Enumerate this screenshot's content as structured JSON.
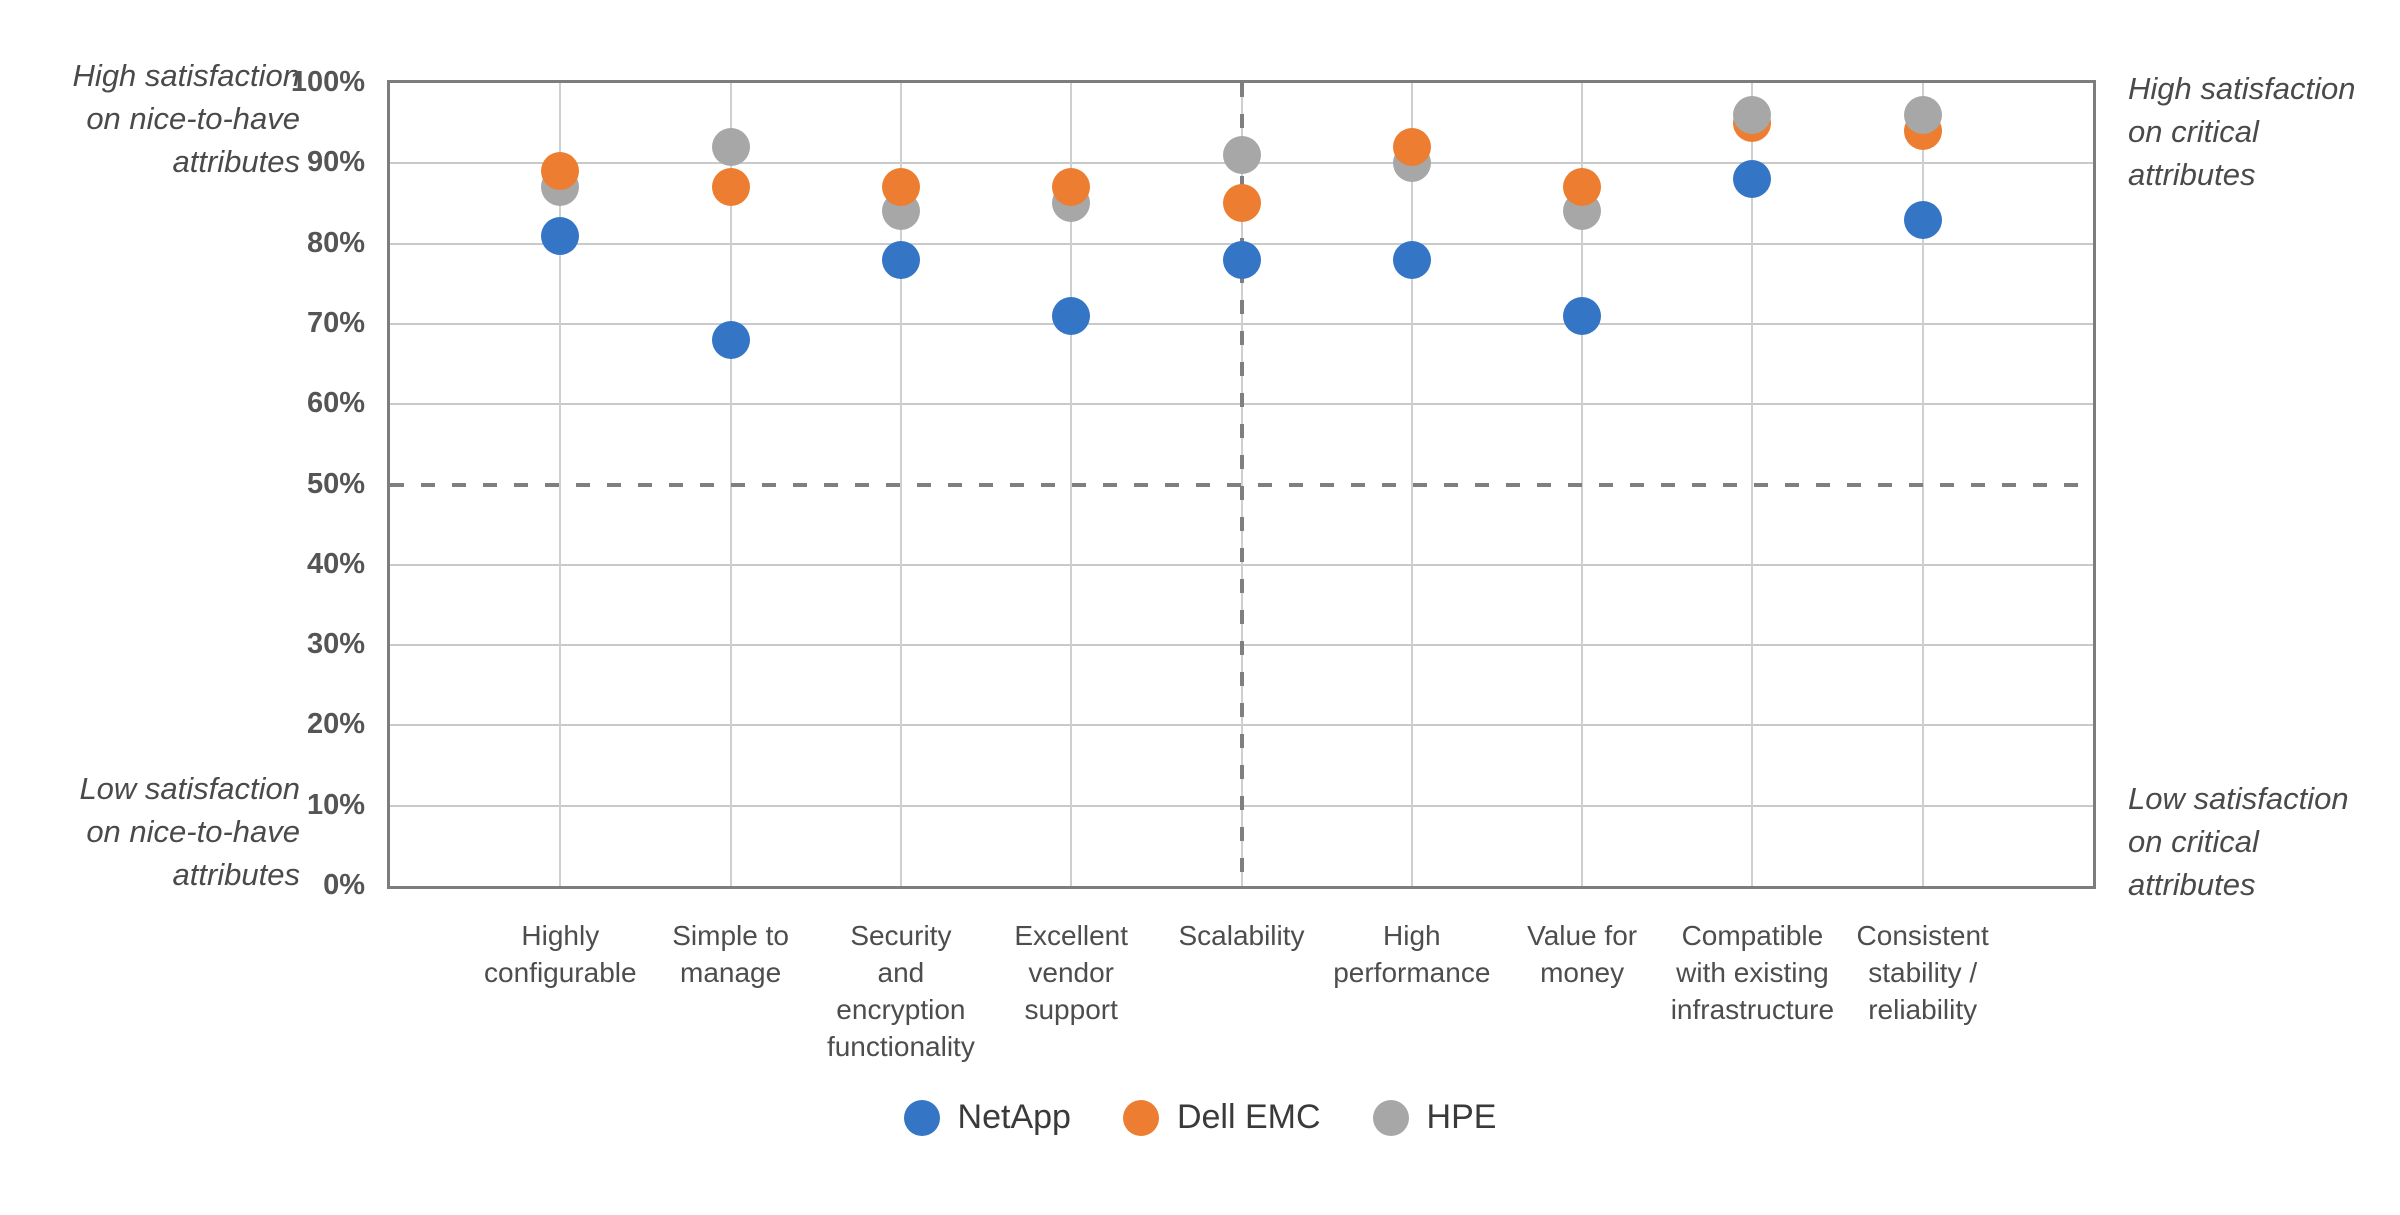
{
  "chart_data": {
    "type": "scatter",
    "title": "",
    "xlabel": "",
    "ylabel": "",
    "ylim": [
      0,
      100
    ],
    "y_tick_step": 10,
    "y_tick_suffix": "%",
    "grid": true,
    "legend_position": "bottom",
    "categories": [
      "Highly\nconfigurable",
      "Simple to\nmanage",
      "Security\nand\nencryption\nfunctionality",
      "Excellent\nvendor\nsupport",
      "Scalability",
      "High\nperformance",
      "Value for\nmoney",
      "Compatible\nwith existing\ninfrastructure",
      "Consistent\nstability /\nreliability"
    ],
    "series": [
      {
        "name": "NetApp",
        "color": "#3575c5",
        "values": [
          81,
          68,
          78,
          71,
          78,
          78,
          71,
          88,
          83
        ]
      },
      {
        "name": "Dell EMC",
        "color": "#ed7d31",
        "values": [
          89,
          87,
          87,
          87,
          85,
          92,
          87,
          95,
          94
        ]
      },
      {
        "name": "HPE",
        "color": "#a7a7a7",
        "values": [
          87,
          92,
          84,
          85,
          91,
          90,
          84,
          96,
          96
        ]
      }
    ],
    "reference_lines": {
      "horizontal_value": 50,
      "vertical_category_index": 4,
      "style": "dashed",
      "color": "#7f7f7f"
    },
    "annotations": {
      "top_left": "High satisfaction\non nice-to-have\nattributes",
      "bottom_left": "Low satisfaction\non nice-to-have\nattributes",
      "top_right": "High satisfaction\non critical\nattributes",
      "bottom_right": "Low satisfaction\non critical\nattributes"
    }
  }
}
